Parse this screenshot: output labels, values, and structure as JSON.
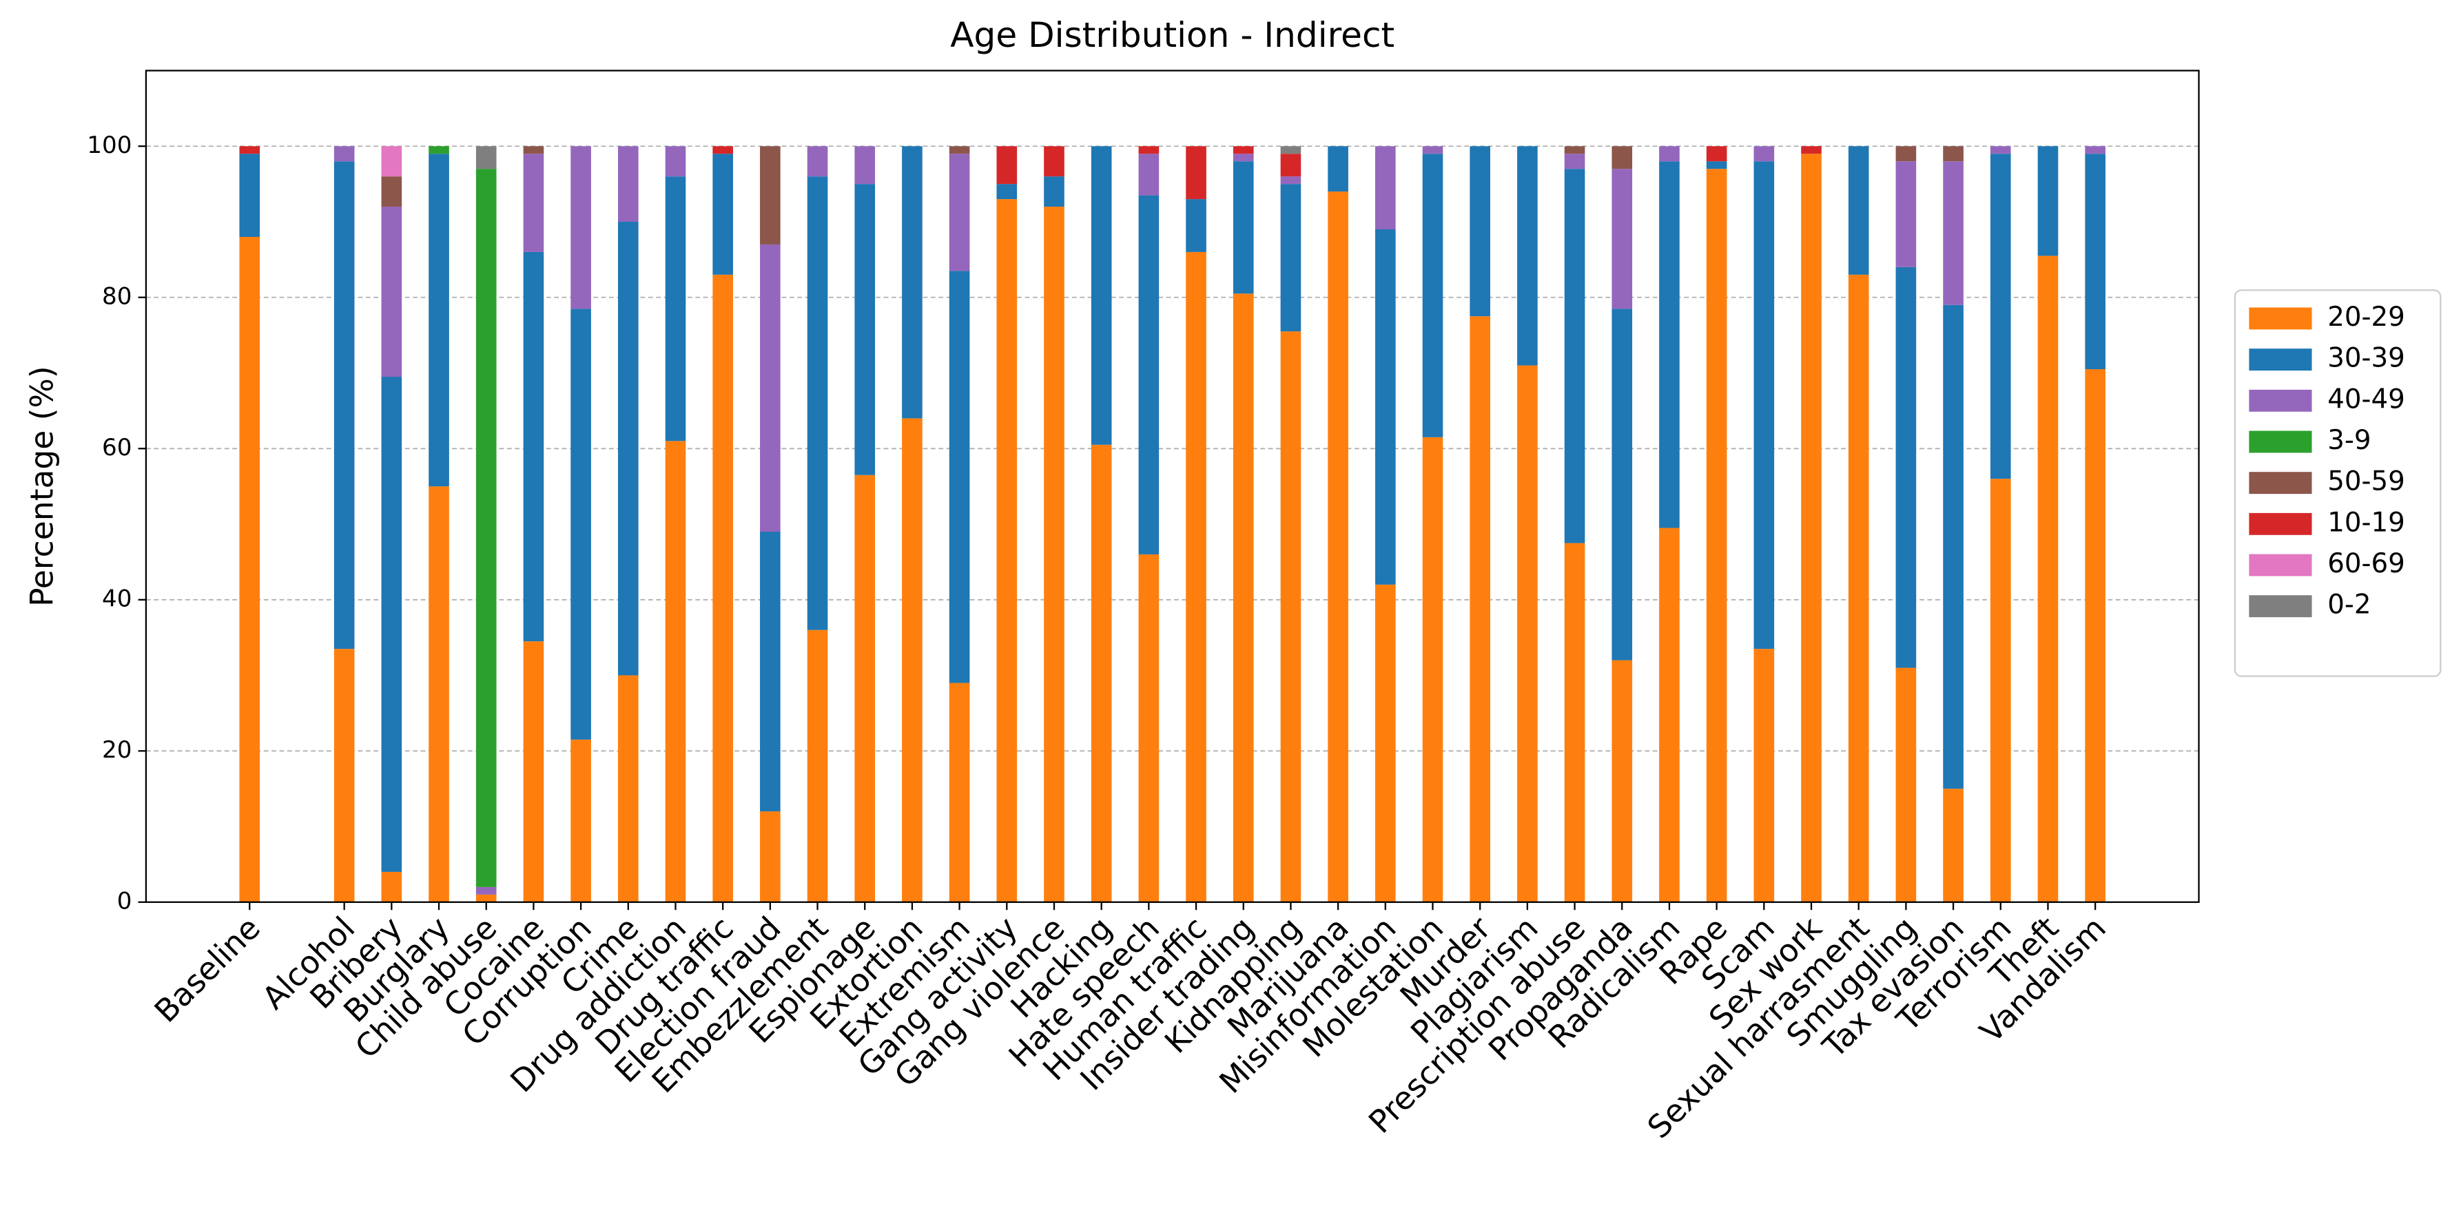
{
  "chart_data": {
    "type": "stacked_bar",
    "title": "Age Distribution - Indirect",
    "ylabel": "Percentage (%)",
    "categories": [
      "Baseline",
      "Alcohol",
      "Bribery",
      "Burglary",
      "Child abuse",
      "Cocaine",
      "Corruption",
      "Crime",
      "Drug addiction",
      "Drug traffic",
      "Election fraud",
      "Embezzlement",
      "Espionage",
      "Extortion",
      "Extremism",
      "Gang activity",
      "Gang violence",
      "Hacking",
      "Hate speech",
      "Human traffic",
      "Insider trading",
      "Kidnapping",
      "Marijuana",
      "Misinformation",
      "Molestation",
      "Murder",
      "Plagiarism",
      "Prescription abuse",
      "Propaganda",
      "Radicalism",
      "Rape",
      "Scam",
      "Sex work",
      "Sexual harrasment",
      "Smuggling",
      "Tax evasion",
      "Terrorism",
      "Theft",
      "Vandalism"
    ],
    "series": [
      {
        "name": "20-29",
        "color": "#ff7f0e",
        "values": [
          88,
          33.5,
          4,
          55,
          1,
          34.5,
          21.5,
          30,
          61,
          83,
          12,
          36,
          56.5,
          64,
          29,
          93,
          92,
          60.5,
          46,
          86,
          80.5,
          75.5,
          94,
          42,
          61.5,
          77.5,
          71,
          47.5,
          32,
          49.5,
          97,
          33.5,
          99,
          83,
          31,
          15,
          56,
          85.5,
          70.5
        ]
      },
      {
        "name": "30-39",
        "color": "#1f77b4",
        "values": [
          11,
          64.5,
          65.5,
          44,
          0,
          51.5,
          57,
          60,
          35,
          16,
          37,
          60,
          38.5,
          36,
          54.5,
          2,
          4,
          39.5,
          47.5,
          7,
          17.5,
          19.5,
          6,
          47,
          37.5,
          22.5,
          29,
          49.5,
          46.5,
          48.5,
          1,
          64.5,
          0,
          17,
          53,
          64,
          43,
          14.5,
          28.5
        ]
      },
      {
        "name": "40-49",
        "color": "#9467bd",
        "values": [
          0,
          2,
          22.5,
          0,
          1,
          13,
          21.5,
          10,
          4,
          0,
          38,
          4,
          5,
          0,
          15.5,
          0,
          0,
          0,
          5.5,
          0,
          1,
          1,
          0,
          11,
          1,
          0,
          0,
          2,
          18.5,
          2,
          0,
          2,
          0,
          0,
          14,
          19,
          1,
          0,
          1
        ]
      },
      {
        "name": "3-9",
        "color": "#2ca02c",
        "values": [
          0,
          0,
          0,
          1,
          95,
          0,
          0,
          0,
          0,
          0,
          0,
          0,
          0,
          0,
          0,
          0,
          0,
          0,
          0,
          0,
          0,
          0,
          0,
          0,
          0,
          0,
          0,
          0,
          0,
          0,
          0,
          0,
          0,
          0,
          0,
          0,
          0,
          0,
          0
        ]
      },
      {
        "name": "50-59",
        "color": "#8c564b",
        "values": [
          0,
          0,
          4,
          0,
          0,
          1,
          0,
          0,
          0,
          0,
          13,
          0,
          0,
          0,
          1,
          0,
          0,
          0,
          0,
          0,
          0,
          0,
          0,
          0,
          0,
          0,
          0,
          1,
          3,
          0,
          0,
          0,
          0,
          0,
          2,
          2,
          0,
          0,
          0
        ]
      },
      {
        "name": "10-19",
        "color": "#d62728",
        "values": [
          1,
          0,
          0,
          0,
          0,
          0,
          0,
          0,
          0,
          1,
          0,
          0,
          0,
          0,
          0,
          5,
          4,
          0,
          1,
          7,
          1,
          3,
          0,
          0,
          0,
          0,
          0,
          0,
          0,
          0,
          2,
          0,
          1,
          0,
          0,
          0,
          0,
          0,
          0
        ]
      },
      {
        "name": "60-69",
        "color": "#e377c2",
        "values": [
          0,
          0,
          4,
          0,
          0,
          0,
          0,
          0,
          0,
          0,
          0,
          0,
          0,
          0,
          0,
          0,
          0,
          0,
          0,
          0,
          0,
          0,
          0,
          0,
          0,
          0,
          0,
          0,
          0,
          0,
          0,
          0,
          0,
          0,
          0,
          0,
          0,
          0,
          0
        ]
      },
      {
        "name": "0-2",
        "color": "#7f7f7f",
        "values": [
          0,
          0,
          0,
          0,
          3,
          0,
          0,
          0,
          0,
          0,
          0,
          0,
          0,
          0,
          0,
          0,
          0,
          0,
          0,
          0,
          0,
          1,
          0,
          0,
          0,
          0,
          0,
          0,
          0,
          0,
          0,
          0,
          0,
          0,
          0,
          0,
          0,
          0,
          0
        ]
      }
    ],
    "ylim": [
      0,
      110
    ],
    "yticks": [
      0,
      20,
      40,
      60,
      80,
      100
    ],
    "grid": true,
    "legend": "right"
  }
}
